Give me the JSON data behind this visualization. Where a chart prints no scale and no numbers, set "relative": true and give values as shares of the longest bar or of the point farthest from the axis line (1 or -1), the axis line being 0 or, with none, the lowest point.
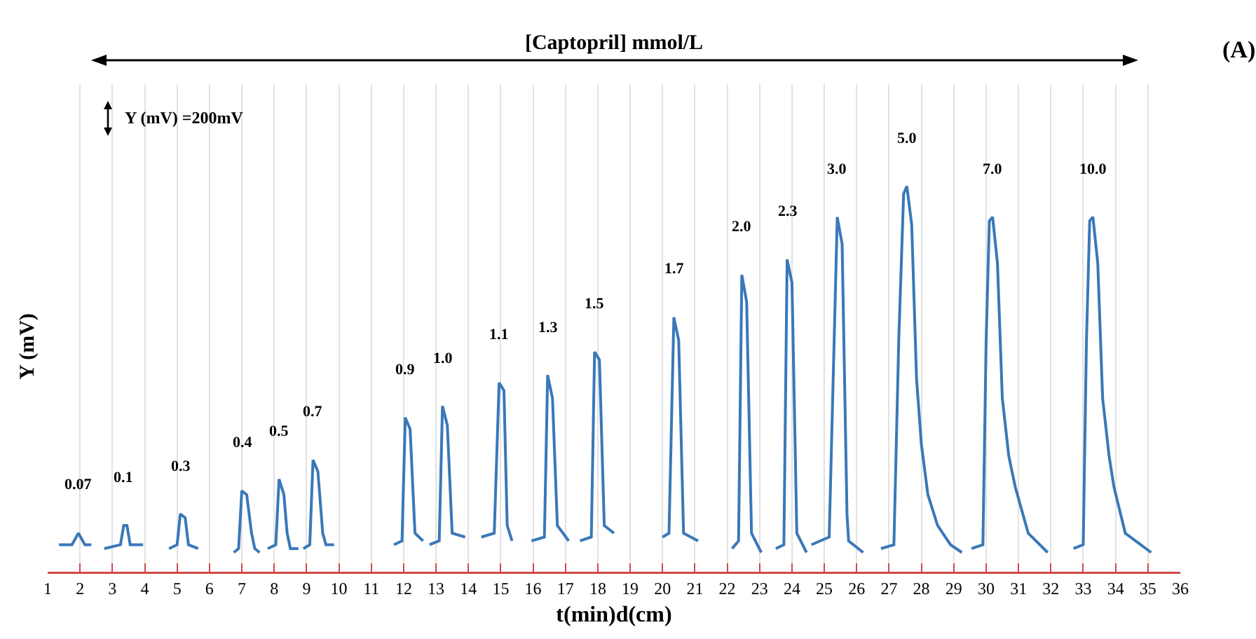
{
  "chart_data": {
    "type": "line",
    "title": "[Captopril] mmol/L",
    "xlabel": "t(min)d(cm)",
    "ylabel": "Y (mV)",
    "relative": true,
    "xlim": [
      1,
      36
    ],
    "xticks": [
      1,
      2,
      3,
      4,
      5,
      6,
      7,
      8,
      9,
      10,
      11,
      12,
      13,
      14,
      15,
      16,
      17,
      18,
      19,
      20,
      21,
      22,
      23,
      24,
      25,
      26,
      27,
      28,
      29,
      30,
      31,
      32,
      33,
      34,
      35,
      36
    ],
    "grid": "x",
    "marker": "none",
    "line_style": "solid",
    "series": [
      {
        "color": "#3a78b8",
        "x": [
          1.35,
          1.75,
          1.95,
          2.15,
          2.35,
          null,
          2.75,
          3.25,
          3.35,
          3.45,
          3.55,
          3.95,
          null,
          4.75,
          5.0,
          5.1,
          5.25,
          5.35,
          5.65,
          null,
          6.75,
          6.9,
          7.0,
          7.15,
          7.3,
          7.4,
          7.55,
          null,
          7.8,
          8.05,
          8.15,
          8.3,
          8.4,
          8.5,
          8.75,
          null,
          8.9,
          9.1,
          9.2,
          9.35,
          9.5,
          9.6,
          9.85,
          null,
          11.7,
          11.95,
          12.05,
          12.2,
          12.35,
          12.6,
          null,
          12.8,
          13.1,
          13.2,
          13.35,
          13.5,
          13.9,
          null,
          14.4,
          14.8,
          14.95,
          15.1,
          15.2,
          15.35,
          null,
          15.95,
          16.35,
          16.45,
          16.6,
          16.75,
          17.1,
          null,
          17.45,
          17.8,
          17.9,
          18.05,
          18.2,
          18.5,
          null,
          20.0,
          20.2,
          20.35,
          20.5,
          20.65,
          21.1,
          null,
          22.15,
          22.35,
          22.45,
          22.6,
          22.75,
          23.05,
          null,
          23.5,
          23.75,
          23.85,
          24.0,
          24.15,
          24.45,
          null,
          24.6,
          25.15,
          25.4,
          25.55,
          25.7,
          25.75,
          26.2,
          null,
          26.75,
          27.15,
          27.3,
          27.45,
          27.55,
          27.7,
          27.85,
          28.0,
          28.2,
          28.5,
          28.9,
          29.25,
          null,
          29.55,
          29.9,
          30.0,
          30.1,
          30.2,
          30.35,
          30.5,
          30.7,
          30.9,
          31.3,
          31.9,
          null,
          32.7,
          33.0,
          33.1,
          33.2,
          33.3,
          33.45,
          33.6,
          33.8,
          33.95,
          34.3,
          35.1
        ],
        "values": [
          0.07,
          0.07,
          0.1,
          0.07,
          0.07,
          null,
          0.06,
          0.07,
          0.12,
          0.12,
          0.07,
          0.07,
          null,
          0.06,
          0.07,
          0.15,
          0.14,
          0.07,
          0.06,
          null,
          0.05,
          0.06,
          0.21,
          0.2,
          0.1,
          0.06,
          0.05,
          null,
          0.06,
          0.07,
          0.24,
          0.2,
          0.1,
          0.06,
          0.06,
          null,
          0.06,
          0.07,
          0.29,
          0.26,
          0.1,
          0.07,
          0.07,
          null,
          0.07,
          0.08,
          0.4,
          0.37,
          0.1,
          0.08,
          null,
          0.07,
          0.08,
          0.43,
          0.38,
          0.1,
          0.09,
          null,
          0.09,
          0.1,
          0.49,
          0.47,
          0.12,
          0.08,
          null,
          0.08,
          0.09,
          0.51,
          0.45,
          0.12,
          0.08,
          null,
          0.08,
          0.09,
          0.57,
          0.55,
          0.12,
          0.1,
          null,
          0.09,
          0.1,
          0.66,
          0.6,
          0.1,
          0.08,
          null,
          0.06,
          0.08,
          0.77,
          0.7,
          0.1,
          0.05,
          null,
          0.06,
          0.07,
          0.81,
          0.75,
          0.1,
          0.05,
          null,
          0.07,
          0.09,
          0.92,
          0.85,
          0.15,
          0.08,
          0.05,
          null,
          0.06,
          0.07,
          0.6,
          0.98,
          1.0,
          0.9,
          0.5,
          0.33,
          0.2,
          0.12,
          0.07,
          0.05,
          null,
          0.06,
          0.07,
          0.6,
          0.91,
          0.92,
          0.8,
          0.45,
          0.3,
          0.22,
          0.1,
          0.05,
          null,
          0.06,
          0.07,
          0.6,
          0.91,
          0.92,
          0.8,
          0.45,
          0.3,
          0.22,
          0.1,
          0.05
        ]
      }
    ],
    "annotations": [
      {
        "text": "0.07",
        "x": 1.95,
        "y": 0.1
      },
      {
        "text": "0.1",
        "x": 3.35,
        "y": 0.12
      },
      {
        "text": "0.3",
        "x": 5.1,
        "y": 0.15
      },
      {
        "text": "0.4",
        "x": 7.0,
        "y": 0.21
      },
      {
        "text": "0.5",
        "x": 8.15,
        "y": 0.24
      },
      {
        "text": "0.7",
        "x": 9.2,
        "y": 0.29
      },
      {
        "text": "0.9",
        "x": 12.05,
        "y": 0.4
      },
      {
        "text": "1.0",
        "x": 13.2,
        "y": 0.43
      },
      {
        "text": "1.1",
        "x": 14.95,
        "y": 0.49
      },
      {
        "text": "1.3",
        "x": 16.45,
        "y": 0.51
      },
      {
        "text": "1.5",
        "x": 17.9,
        "y": 0.57
      },
      {
        "text": "1.7",
        "x": 20.35,
        "y": 0.66
      },
      {
        "text": "2.0",
        "x": 22.45,
        "y": 0.77
      },
      {
        "text": "2.3",
        "x": 23.85,
        "y": 0.81
      },
      {
        "text": "3.0",
        "x": 25.4,
        "y": 0.92
      },
      {
        "text": "5.0",
        "x": 27.55,
        "y": 1.0
      },
      {
        "text": "7.0",
        "x": 30.2,
        "y": 0.92
      },
      {
        "text": "10.0",
        "x": 33.3,
        "y": 0.92
      },
      "Y (mV) =200mV",
      "(A)"
    ]
  }
}
